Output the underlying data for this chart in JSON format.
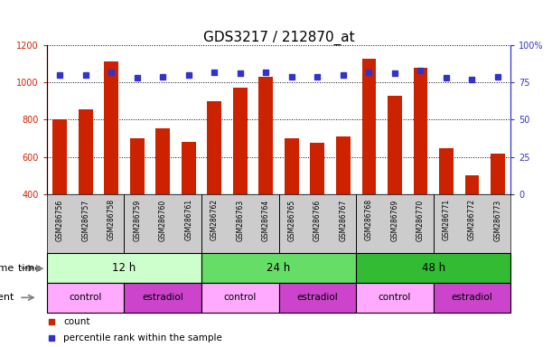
{
  "title": "GDS3217 / 212870_at",
  "samples": [
    "GSM286756",
    "GSM286757",
    "GSM286758",
    "GSM286759",
    "GSM286760",
    "GSM286761",
    "GSM286762",
    "GSM286763",
    "GSM286764",
    "GSM286765",
    "GSM286766",
    "GSM286767",
    "GSM286768",
    "GSM286769",
    "GSM286770",
    "GSM286771",
    "GSM286772",
    "GSM286773"
  ],
  "counts": [
    800,
    855,
    1110,
    700,
    755,
    680,
    900,
    970,
    1030,
    700,
    675,
    710,
    1125,
    930,
    1080,
    645,
    500,
    620
  ],
  "percentile_ranks": [
    80,
    80,
    82,
    78,
    79,
    80,
    82,
    81,
    82,
    79,
    79,
    80,
    82,
    81,
    83,
    78,
    77,
    79
  ],
  "ylim_left": [
    400,
    1200
  ],
  "ylim_right": [
    0,
    100
  ],
  "yticks_left": [
    400,
    600,
    800,
    1000,
    1200
  ],
  "yticks_right": [
    0,
    25,
    50,
    75,
    100
  ],
  "bar_color": "#CC2200",
  "dot_color": "#3333CC",
  "grid_color": "#000000",
  "time_groups": [
    {
      "label": "12 h",
      "start": 0,
      "end": 6,
      "color": "#CCFFCC"
    },
    {
      "label": "24 h",
      "start": 6,
      "end": 12,
      "color": "#66DD66"
    },
    {
      "label": "48 h",
      "start": 12,
      "end": 18,
      "color": "#33BB33"
    }
  ],
  "agent_groups": [
    {
      "label": "control",
      "start": 0,
      "end": 3,
      "color": "#FFAAFF"
    },
    {
      "label": "estradiol",
      "start": 3,
      "end": 6,
      "color": "#CC44CC"
    },
    {
      "label": "control",
      "start": 6,
      "end": 9,
      "color": "#FFAAFF"
    },
    {
      "label": "estradiol",
      "start": 9,
      "end": 12,
      "color": "#CC44CC"
    },
    {
      "label": "control",
      "start": 12,
      "end": 15,
      "color": "#FFAAFF"
    },
    {
      "label": "estradiol",
      "start": 15,
      "end": 18,
      "color": "#CC44CC"
    }
  ],
  "xlabel_color": "#CC2200",
  "ylabel_right_color": "#3333CC",
  "title_fontsize": 11,
  "bar_width": 0.55,
  "group_boundaries": [
    3,
    6,
    9,
    12,
    15
  ]
}
